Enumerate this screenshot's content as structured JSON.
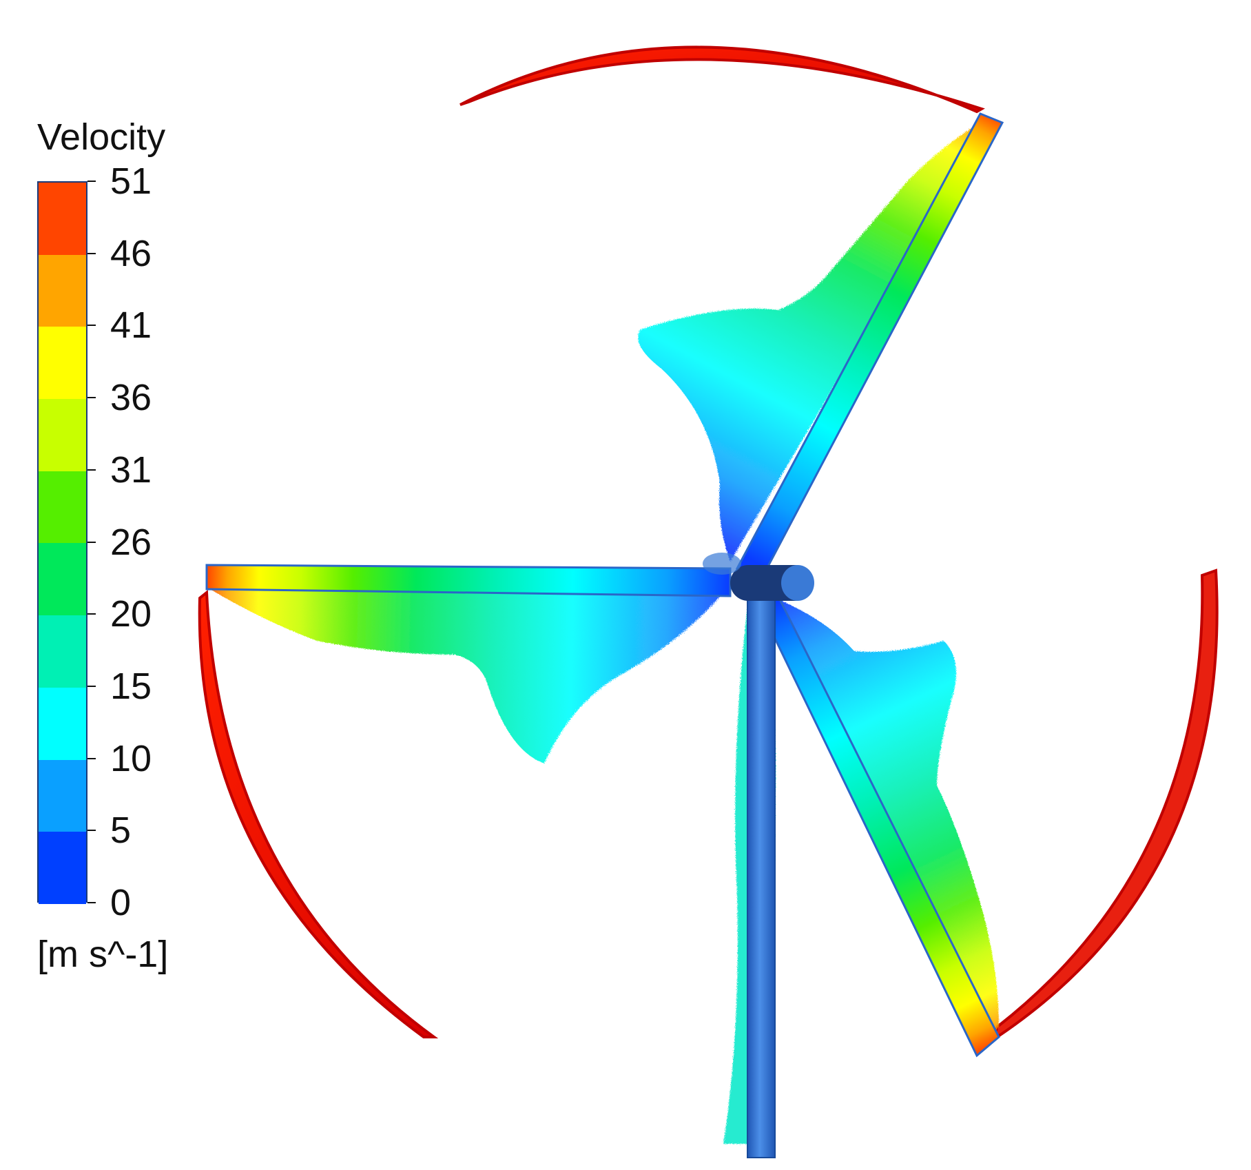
{
  "legend": {
    "title": "Velocity",
    "unit": "[m s^-1]",
    "tick_labels": [
      "51",
      "46",
      "41",
      "36",
      "31",
      "26",
      "20",
      "15",
      "10",
      "5",
      "0"
    ],
    "band_colors": [
      "#ff4500",
      "#ffa500",
      "#ffff00",
      "#c8ff00",
      "#55ee00",
      "#00e85a",
      "#00f0b4",
      "#00ffff",
      "#0aa0ff",
      "#0040ff"
    ]
  },
  "scene": {
    "tip_vortex_color": "#ee1010",
    "tower_color": "#3a7ad6",
    "hub_color": "#1a3a78"
  }
}
